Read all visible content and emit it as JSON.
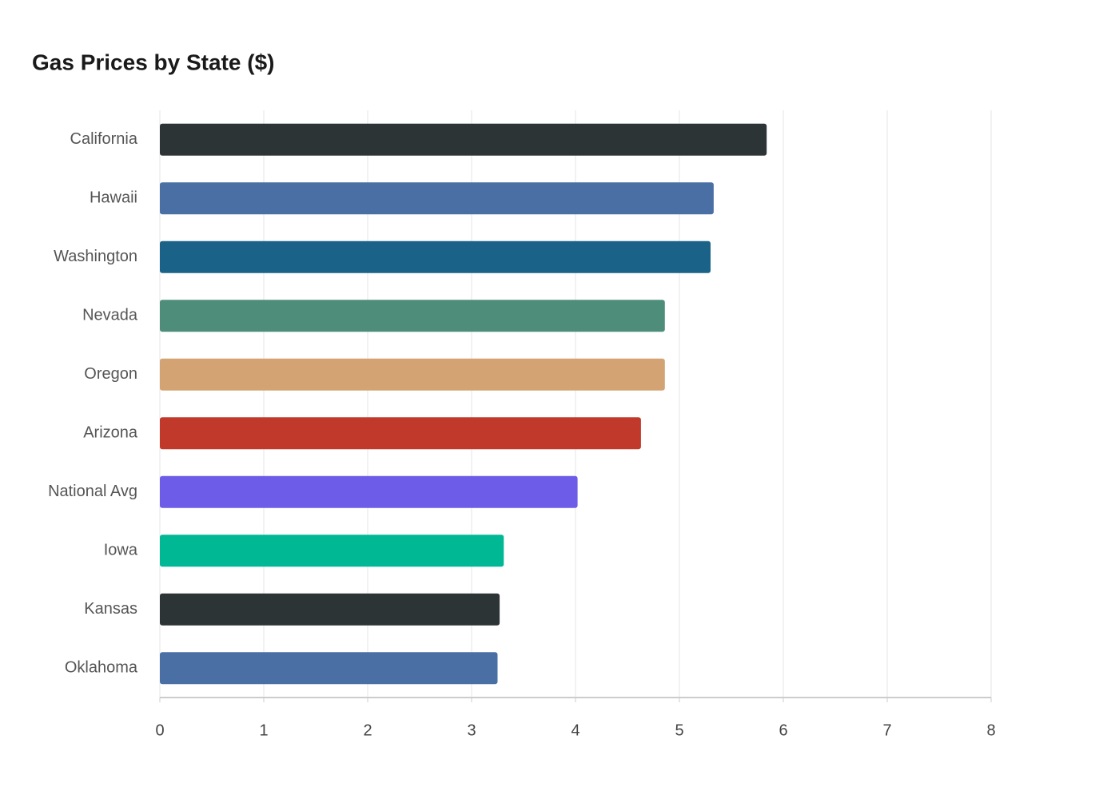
{
  "chart_data": {
    "type": "hbar",
    "title": "Gas Prices by State ($)",
    "categories": [
      "California",
      "Hawaii",
      "Washington",
      "Nevada",
      "Oregon",
      "Arizona",
      "National Avg",
      "Iowa",
      "Kansas",
      "Oklahoma"
    ],
    "values": [
      5.84,
      5.33,
      5.3,
      4.86,
      4.86,
      4.63,
      4.02,
      3.31,
      3.27,
      3.25
    ],
    "colors": [
      "#2d3436",
      "#4a6fa5",
      "#1a6288",
      "#4f8d7b",
      "#d4a373",
      "#c0392b",
      "#6c5ce7",
      "#00b894",
      "#2d3436",
      "#4a6fa5"
    ],
    "xlim": [
      0,
      8
    ],
    "xticks": [
      0,
      1,
      2,
      3,
      4,
      5,
      6,
      7,
      8
    ],
    "grid": true
  }
}
